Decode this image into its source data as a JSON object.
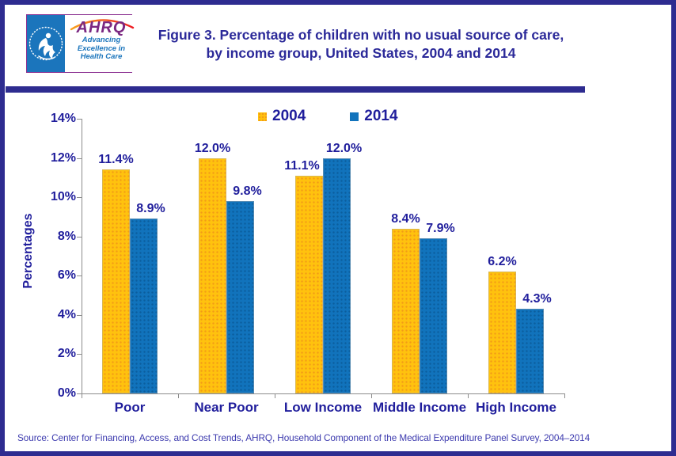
{
  "header": {
    "logo": {
      "hhs_seal": "U.S. Department of Health & Human Services seal",
      "ahrq_acronym": "AHRQ",
      "tagline": [
        "Advancing",
        "Excellence in",
        "Health Care"
      ]
    },
    "title_line1": "Figure 3. Percentage of children with no usual source of care,",
    "title_line2": "by income group, United States, 2004 and 2014"
  },
  "chart_data": {
    "type": "bar",
    "title": "Figure 3. Percentage of children with no usual source of care, by income group, United States, 2004 and 2014",
    "categories": [
      "Poor",
      "Near Poor",
      "Low Income",
      "Middle Income",
      "High Income"
    ],
    "series": [
      {
        "name": "2004",
        "color": "#FFC20E",
        "values": [
          11.4,
          12.0,
          11.1,
          8.4,
          6.2
        ]
      },
      {
        "name": "2014",
        "color": "#1173BC",
        "values": [
          8.9,
          9.8,
          12.0,
          7.9,
          4.3
        ]
      }
    ],
    "xlabel": "",
    "ylabel": "Percentages",
    "ylim": [
      0,
      14
    ],
    "ytick_step": 2,
    "ytick_suffix": "%",
    "data_label_suffix": "%",
    "legend_position": "top-center",
    "grid": false
  },
  "footer": {
    "source": "Source: Center for Financing, Access, and Cost Trends, AHRQ, Household Component of the Medical Expenditure Panel Survey, 2004–2014"
  },
  "colors": {
    "accent_dark_blue": "#2E2C90",
    "chart_text": "#201E9C",
    "title_text": "#2B2999",
    "source_text": "#3C3AAE",
    "bar_2004": "#FFC20E",
    "bar_2014": "#1173BC",
    "axis_gray": "#8C8C8C",
    "hhs_blue": "#1B75BC",
    "ahrq_purple": "#7B2882"
  }
}
